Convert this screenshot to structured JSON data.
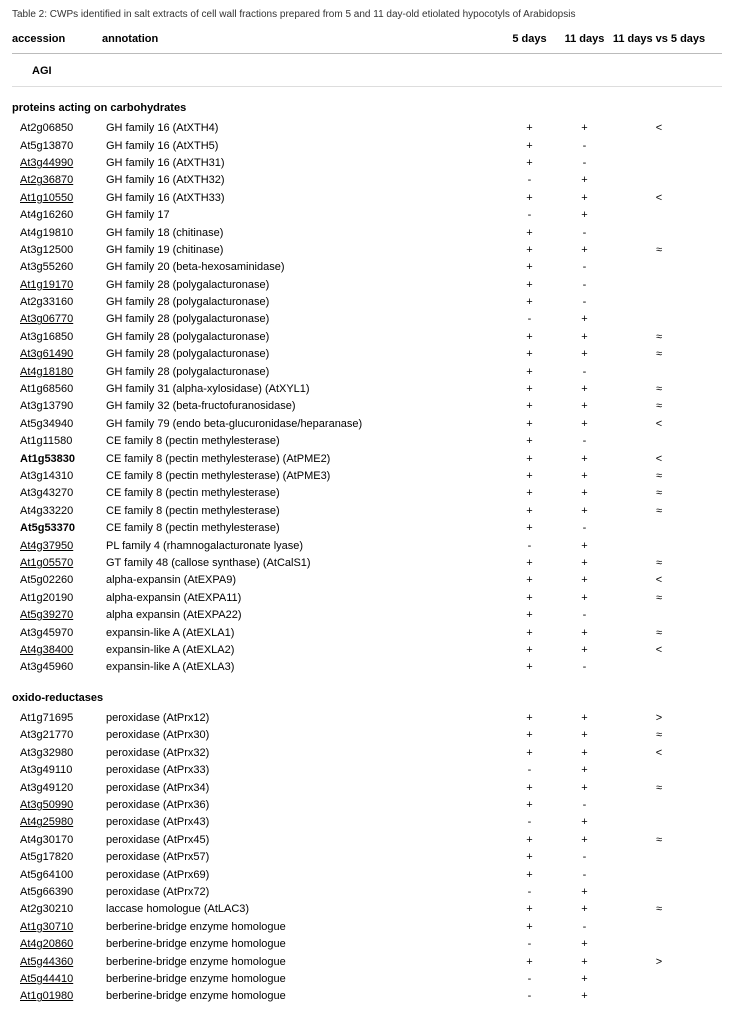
{
  "caption": "Table 2: CWPs identified in salt extracts of cell wall fractions prepared from 5 and 11 day-old etiolated hypocotyls of Arabidopsis",
  "headers": {
    "accession": "accession",
    "annotation": "annotation",
    "d5": "5 days",
    "d11": "11 days",
    "cmp": "11 days vs 5 days"
  },
  "subheader": "AGI",
  "groups": [
    {
      "title": "proteins acting on carbohydrates",
      "rows": [
        {
          "acc": "At2g06850",
          "accStyle": "",
          "ann": "GH family 16 (AtXTH4)",
          "d5": "+",
          "d11": "+",
          "cmp": "<"
        },
        {
          "acc": "At5g13870",
          "accStyle": "",
          "ann": "GH family 16 (AtXTH5)",
          "d5": "+",
          "d11": "-",
          "cmp": ""
        },
        {
          "acc": "At3g44990",
          "accStyle": "under",
          "ann": "GH family 16 (AtXTH31)",
          "d5": "+",
          "d11": "-",
          "cmp": ""
        },
        {
          "acc": "At2g36870",
          "accStyle": "under",
          "ann": "GH family 16 (AtXTH32)",
          "d5": "-",
          "d11": "+",
          "cmp": ""
        },
        {
          "acc": "At1g10550",
          "accStyle": "under",
          "ann": "GH family 16 (AtXTH33)",
          "d5": "+",
          "d11": "+",
          "cmp": "<"
        },
        {
          "acc": "At4g16260",
          "accStyle": "",
          "ann": "GH family 17",
          "d5": "-",
          "d11": "+",
          "cmp": ""
        },
        {
          "acc": "At4g19810",
          "accStyle": "",
          "ann": "GH family 18 (chitinase)",
          "d5": "+",
          "d11": "-",
          "cmp": ""
        },
        {
          "acc": "At3g12500",
          "accStyle": "",
          "ann": "GH family 19 (chitinase)",
          "d5": "+",
          "d11": "+",
          "cmp": "≈"
        },
        {
          "acc": "At3g55260",
          "accStyle": "",
          "ann": "GH family 20 (beta-hexosaminidase)",
          "d5": "+",
          "d11": "-",
          "cmp": ""
        },
        {
          "acc": "At1g19170",
          "accStyle": "under",
          "ann": "GH family 28 (polygalacturonase)",
          "d5": "+",
          "d11": "-",
          "cmp": ""
        },
        {
          "acc": "At2g33160",
          "accStyle": "",
          "ann": "GH family 28 (polygalacturonase)",
          "d5": "+",
          "d11": "-",
          "cmp": ""
        },
        {
          "acc": "At3g06770",
          "accStyle": "under",
          "ann": "GH family 28 (polygalacturonase)",
          "d5": "-",
          "d11": "+",
          "cmp": ""
        },
        {
          "acc": "At3g16850",
          "accStyle": "",
          "ann": "GH family 28 (polygalacturonase)",
          "d5": "+",
          "d11": "+",
          "cmp": "≈"
        },
        {
          "acc": "At3g61490",
          "accStyle": "under",
          "ann": "GH family 28 (polygalacturonase)",
          "d5": "+",
          "d11": "+",
          "cmp": "≈"
        },
        {
          "acc": "At4g18180",
          "accStyle": "under",
          "ann": "GH family 28 (polygalacturonase)",
          "d5": "+",
          "d11": "-",
          "cmp": ""
        },
        {
          "acc": "At1g68560",
          "accStyle": "",
          "ann": "GH family 31 (alpha-xylosidase) (AtXYL1)",
          "d5": "+",
          "d11": "+",
          "cmp": "≈"
        },
        {
          "acc": "At3g13790",
          "accStyle": "",
          "ann": "GH family 32 (beta-fructofuranosidase)",
          "d5": "+",
          "d11": "+",
          "cmp": "≈"
        },
        {
          "acc": "At5g34940",
          "accStyle": "",
          "ann": "GH family 79 (endo beta-glucuronidase/heparanase)",
          "d5": "+",
          "d11": "+",
          "cmp": "<"
        },
        {
          "acc": "At1g11580",
          "accStyle": "",
          "ann": "CE family 8 (pectin methylesterase)",
          "d5": "+",
          "d11": "-",
          "cmp": ""
        },
        {
          "acc": "At1g53830",
          "accStyle": "bold",
          "ann": "CE family 8 (pectin methylesterase) (AtPME2)",
          "d5": "+",
          "d11": "+",
          "cmp": "<"
        },
        {
          "acc": "At3g14310",
          "accStyle": "",
          "ann": "CE family 8 (pectin methylesterase) (AtPME3)",
          "d5": "+",
          "d11": "+",
          "cmp": "≈"
        },
        {
          "acc": "At3g43270",
          "accStyle": "",
          "ann": "CE family 8 (pectin methylesterase)",
          "d5": "+",
          "d11": "+",
          "cmp": "≈"
        },
        {
          "acc": "At4g33220",
          "accStyle": "",
          "ann": "CE family 8 (pectin methylesterase)",
          "d5": "+",
          "d11": "+",
          "cmp": "≈"
        },
        {
          "acc": "At5g53370",
          "accStyle": "bold",
          "ann": "CE family 8 (pectin methylesterase)",
          "d5": "+",
          "d11": "-",
          "cmp": ""
        },
        {
          "acc": "At4g37950",
          "accStyle": "under",
          "ann": "PL family 4 (rhamnogalacturonate lyase)",
          "d5": "-",
          "d11": "+",
          "cmp": ""
        },
        {
          "acc": "At1g05570",
          "accStyle": "under",
          "ann": "GT family 48 (callose synthase) (AtCalS1)",
          "d5": "+",
          "d11": "+",
          "cmp": "≈"
        },
        {
          "acc": "At5g02260",
          "accStyle": "",
          "ann": "alpha-expansin (AtEXPA9)",
          "d5": "+",
          "d11": "+",
          "cmp": "<"
        },
        {
          "acc": "At1g20190",
          "accStyle": "",
          "ann": "alpha-expansin (AtEXPA11)",
          "d5": "+",
          "d11": "+",
          "cmp": "≈"
        },
        {
          "acc": "At5g39270",
          "accStyle": "under",
          "ann": "alpha expansin (AtEXPA22)",
          "d5": "+",
          "d11": "-",
          "cmp": ""
        },
        {
          "acc": "At3g45970",
          "accStyle": "",
          "ann": "expansin-like A (AtEXLA1)",
          "d5": "+",
          "d11": "+",
          "cmp": "≈"
        },
        {
          "acc": "At4g38400",
          "accStyle": "under",
          "ann": "expansin-like A (AtEXLA2)",
          "d5": "+",
          "d11": "+",
          "cmp": "<"
        },
        {
          "acc": "At3g45960",
          "accStyle": "",
          "ann": "expansin-like A (AtEXLA3)",
          "d5": "+",
          "d11": "-",
          "cmp": ""
        }
      ]
    },
    {
      "title": "oxido-reductases",
      "rows": [
        {
          "acc": "At1g71695",
          "accStyle": "",
          "ann": "peroxidase (AtPrx12)",
          "d5": "+",
          "d11": "+",
          "cmp": ">"
        },
        {
          "acc": "At3g21770",
          "accStyle": "",
          "ann": "peroxidase (AtPrx30)",
          "d5": "+",
          "d11": "+",
          "cmp": "≈"
        },
        {
          "acc": "At3g32980",
          "accStyle": "",
          "ann": "peroxidase (AtPrx32)",
          "d5": "+",
          "d11": "+",
          "cmp": "<"
        },
        {
          "acc": "At3g49110",
          "accStyle": "",
          "ann": "peroxidase (AtPrx33)",
          "d5": "-",
          "d11": "+",
          "cmp": ""
        },
        {
          "acc": "At3g49120",
          "accStyle": "",
          "ann": "peroxidase (AtPrx34)",
          "d5": "+",
          "d11": "+",
          "cmp": "≈"
        },
        {
          "acc": "At3g50990",
          "accStyle": "under",
          "ann": "peroxidase (AtPrx36)",
          "d5": "+",
          "d11": "-",
          "cmp": ""
        },
        {
          "acc": "At4g25980",
          "accStyle": "under",
          "ann": "peroxidase (AtPrx43)",
          "d5": "-",
          "d11": "+",
          "cmp": ""
        },
        {
          "acc": "At4g30170",
          "accStyle": "",
          "ann": "peroxidase (AtPrx45)",
          "d5": "+",
          "d11": "+",
          "cmp": "≈"
        },
        {
          "acc": "At5g17820",
          "accStyle": "",
          "ann": "peroxidase (AtPrx57)",
          "d5": "+",
          "d11": "-",
          "cmp": ""
        },
        {
          "acc": "At5g64100",
          "accStyle": "",
          "ann": "peroxidase (AtPrx69)",
          "d5": "+",
          "d11": "-",
          "cmp": ""
        },
        {
          "acc": "At5g66390",
          "accStyle": "",
          "ann": "peroxidase (AtPrx72)",
          "d5": "-",
          "d11": "+",
          "cmp": ""
        },
        {
          "acc": "At2g30210",
          "accStyle": "",
          "ann": "laccase homologue (AtLAC3)",
          "d5": "+",
          "d11": "+",
          "cmp": "≈"
        },
        {
          "acc": "At1g30710",
          "accStyle": "under",
          "ann": "berberine-bridge enzyme homologue",
          "d5": "+",
          "d11": "-",
          "cmp": ""
        },
        {
          "acc": "At4g20860",
          "accStyle": "under",
          "ann": "berberine-bridge enzyme homologue",
          "d5": "-",
          "d11": "+",
          "cmp": ""
        },
        {
          "acc": "At5g44360",
          "accStyle": "under",
          "ann": "berberine-bridge enzyme homologue",
          "d5": "+",
          "d11": "+",
          "cmp": ">"
        },
        {
          "acc": "At5g44410",
          "accStyle": "under",
          "ann": "berberine-bridge enzyme homologue",
          "d5": "-",
          "d11": "+",
          "cmp": ""
        },
        {
          "acc": "At1g01980",
          "accStyle": "under",
          "ann": "berberine-bridge enzyme homologue",
          "d5": "-",
          "d11": "+",
          "cmp": ""
        }
      ]
    }
  ]
}
